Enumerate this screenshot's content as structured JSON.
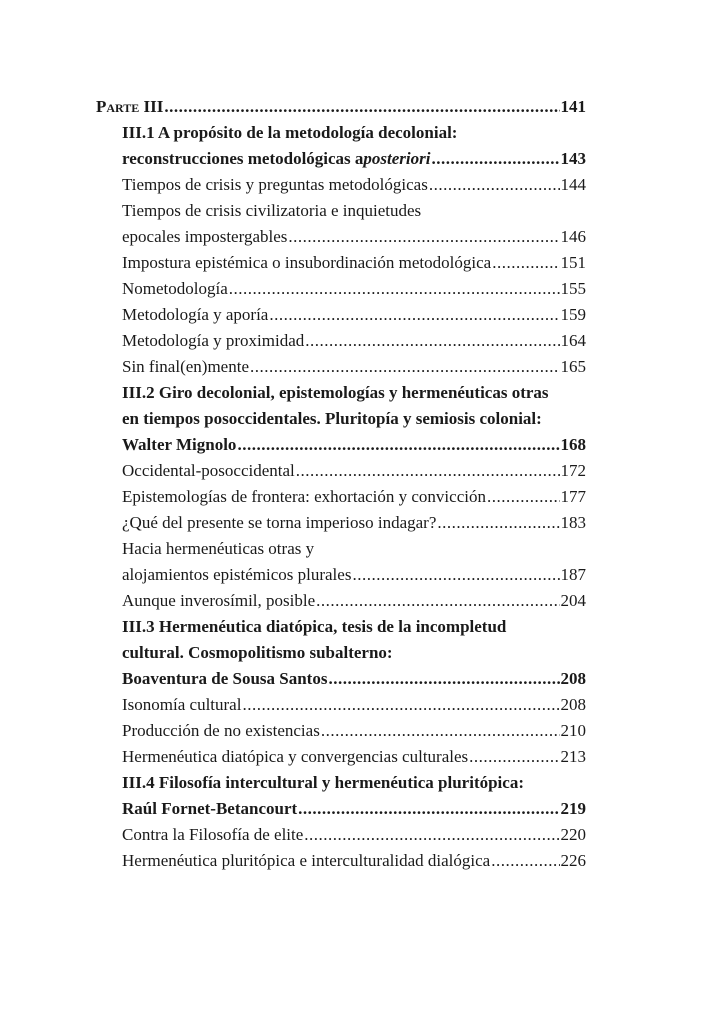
{
  "toc": [
    {
      "text": "Parte III",
      "page": "141",
      "kind": "part"
    },
    {
      "text": "III.1 A propósito de la metodología decolonial:",
      "kind": "bold"
    },
    {
      "text": "reconstrucciones metodológicas a ",
      "italic": "posteriori",
      "page": "143",
      "kind": "bold"
    },
    {
      "text": "Tiempos de crisis y preguntas metodológicas ",
      "page": "144",
      "kind": "normal"
    },
    {
      "text": "Tiempos de crisis civilizatoria e inquietudes",
      "kind": "normal"
    },
    {
      "text": "epocales impostergables ",
      "page": "146",
      "kind": "normal"
    },
    {
      "text": "Impostura epistémica o insubordinación metodológica ",
      "page": "151",
      "kind": "normal"
    },
    {
      "text": "Nometodología ",
      "page": "155",
      "kind": "normal"
    },
    {
      "text": "Metodología y aporía",
      "page": "159",
      "kind": "normal"
    },
    {
      "text": "Metodología y proximidad  ",
      "page": "164",
      "kind": "normal"
    },
    {
      "text": "Sin final(en)mente ",
      "page": "165",
      "kind": "normal"
    },
    {
      "text": "III.2 Giro decolonial, epistemologías y hermenéuticas otras",
      "kind": "bold"
    },
    {
      "text": "en tiempos posoccidentales. Pluritopía y semiosis colonial:",
      "kind": "bold"
    },
    {
      "text": "Walter Mignolo ",
      "page": "168",
      "kind": "bold"
    },
    {
      "text": "Occidental-posoccidental",
      "page": "172",
      "kind": "normal"
    },
    {
      "text": "Epistemologías de frontera: exhortación y convicción ",
      "page": "177",
      "kind": "normal"
    },
    {
      "text": "¿Qué del presente se torna imperioso indagar?  ",
      "page": "183",
      "kind": "normal"
    },
    {
      "text": "Hacia hermenéuticas otras y",
      "kind": "normal"
    },
    {
      "text": "alojamientos epistémicos plurales ",
      "page": "187",
      "kind": "normal"
    },
    {
      "text": "Aunque inverosímil, posible",
      "page": "204",
      "kind": "normal"
    },
    {
      "text": "III.3 Hermenéutica diatópica, tesis de la incompletud",
      "kind": "bold"
    },
    {
      "text": "cultural. Cosmopolitismo subalterno:",
      "kind": "bold"
    },
    {
      "text": "Boaventura de Sousa Santos",
      "page": "208",
      "kind": "bold"
    },
    {
      "text": "Isonomía cultural ",
      "page": "208",
      "kind": "normal"
    },
    {
      "text": "Producción de no existencias ",
      "page": "210",
      "kind": "normal"
    },
    {
      "text": "Hermenéutica diatópica y convergencias culturales",
      "page": "213",
      "kind": "normal"
    },
    {
      "text": "III.4 Filosofía intercultural y hermenéutica pluritópica:",
      "kind": "bold"
    },
    {
      "text": "Raúl Fornet-Betancourt ",
      "page": "219",
      "kind": "bold"
    },
    {
      "text": "Contra la Filosofía de elite",
      "page": "220",
      "kind": "normal"
    },
    {
      "text": "Hermenéutica pluritópica e interculturalidad dialógica",
      "page": "226",
      "kind": "normal"
    }
  ]
}
